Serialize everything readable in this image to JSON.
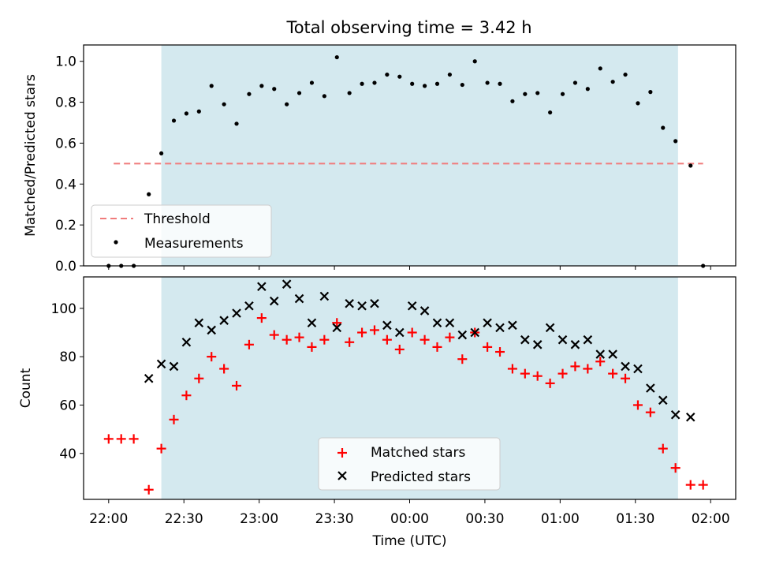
{
  "chart_data": {
    "type": "scatter",
    "title": "Total observing time = 3.42 h",
    "xlabel": "Time (UTC)",
    "x_unit": "minutes after 22:00 UTC",
    "xlim": [
      -10,
      250
    ],
    "x_ticks": [
      {
        "value": 0,
        "label": "22:00"
      },
      {
        "value": 30,
        "label": "22:30"
      },
      {
        "value": 60,
        "label": "23:00"
      },
      {
        "value": 90,
        "label": "23:30"
      },
      {
        "value": 120,
        "label": "00:00"
      },
      {
        "value": 150,
        "label": "00:30"
      },
      {
        "value": 180,
        "label": "01:00"
      },
      {
        "value": 210,
        "label": "01:30"
      },
      {
        "value": 240,
        "label": "02:00"
      }
    ],
    "shaded_region": {
      "x_start": 21,
      "x_end": 227,
      "color": "#d4e9ef"
    },
    "panels": [
      {
        "id": "top",
        "ylabel": "Matched/Predicted stars",
        "ylim": [
          0,
          1.08
        ],
        "y_ticks": [
          "0.0",
          "0.2",
          "0.4",
          "0.6",
          "0.8",
          "1.0"
        ],
        "y_tick_values": [
          0,
          0.2,
          0.4,
          0.6,
          0.8,
          1.0
        ],
        "threshold": {
          "name": "Threshold",
          "value": 0.5,
          "x_start": 2,
          "x_end": 237,
          "color": "#f07c7c"
        },
        "legend": {
          "position": "lower-left",
          "entries": [
            "Threshold",
            "Measurements"
          ]
        },
        "series": [
          {
            "name": "Measurements",
            "color": "#000000",
            "marker": "dot",
            "points": [
              [
                0,
                0.0
              ],
              [
                5,
                0.0
              ],
              [
                10,
                0.0
              ],
              [
                16,
                0.35
              ],
              [
                21,
                0.55
              ],
              [
                26,
                0.71
              ],
              [
                31,
                0.745
              ],
              [
                36,
                0.755
              ],
              [
                41,
                0.88
              ],
              [
                46,
                0.79
              ],
              [
                51,
                0.695
              ],
              [
                56,
                0.84
              ],
              [
                61,
                0.88
              ],
              [
                66,
                0.865
              ],
              [
                71,
                0.79
              ],
              [
                76,
                0.845
              ],
              [
                81,
                0.895
              ],
              [
                86,
                0.83
              ],
              [
                91,
                1.02
              ],
              [
                96,
                0.845
              ],
              [
                101,
                0.89
              ],
              [
                106,
                0.895
              ],
              [
                111,
                0.935
              ],
              [
                116,
                0.925
              ],
              [
                121,
                0.89
              ],
              [
                126,
                0.88
              ],
              [
                131,
                0.89
              ],
              [
                136,
                0.935
              ],
              [
                141,
                0.885
              ],
              [
                146,
                1.0
              ],
              [
                151,
                0.895
              ],
              [
                156,
                0.89
              ],
              [
                161,
                0.805
              ],
              [
                166,
                0.84
              ],
              [
                171,
                0.845
              ],
              [
                176,
                0.75
              ],
              [
                181,
                0.84
              ],
              [
                186,
                0.895
              ],
              [
                191,
                0.865
              ],
              [
                196,
                0.965
              ],
              [
                201,
                0.9
              ],
              [
                206,
                0.935
              ],
              [
                211,
                0.795
              ],
              [
                216,
                0.85
              ],
              [
                221,
                0.675
              ],
              [
                226,
                0.61
              ],
              [
                232,
                0.49
              ],
              [
                237,
                0.0
              ]
            ]
          }
        ]
      },
      {
        "id": "bottom",
        "ylabel": "Count",
        "ylim": [
          21,
          113
        ],
        "y_ticks": [
          "40",
          "60",
          "80",
          "100"
        ],
        "y_tick_values": [
          40,
          60,
          80,
          100
        ],
        "legend": {
          "position": "lower-center",
          "entries": [
            "Matched stars",
            "Predicted stars"
          ]
        },
        "series": [
          {
            "name": "Matched stars",
            "color": "#ff0000",
            "marker": "plus",
            "points": [
              [
                0,
                46
              ],
              [
                5,
                46
              ],
              [
                10,
                46
              ],
              [
                16,
                25
              ],
              [
                21,
                42
              ],
              [
                26,
                54
              ],
              [
                31,
                64
              ],
              [
                36,
                71
              ],
              [
                41,
                80
              ],
              [
                46,
                75
              ],
              [
                51,
                68
              ],
              [
                56,
                85
              ],
              [
                61,
                96
              ],
              [
                66,
                89
              ],
              [
                71,
                87
              ],
              [
                76,
                88
              ],
              [
                81,
                84
              ],
              [
                86,
                87
              ],
              [
                91,
                94
              ],
              [
                96,
                86
              ],
              [
                101,
                90
              ],
              [
                106,
                91
              ],
              [
                111,
                87
              ],
              [
                116,
                83
              ],
              [
                121,
                90
              ],
              [
                126,
                87
              ],
              [
                131,
                84
              ],
              [
                136,
                88
              ],
              [
                141,
                79
              ],
              [
                146,
                90
              ],
              [
                151,
                84
              ],
              [
                156,
                82
              ],
              [
                161,
                75
              ],
              [
                166,
                73
              ],
              [
                171,
                72
              ],
              [
                176,
                69
              ],
              [
                181,
                73
              ],
              [
                186,
                76
              ],
              [
                191,
                75
              ],
              [
                196,
                78
              ],
              [
                201,
                73
              ],
              [
                206,
                71
              ],
              [
                211,
                60
              ],
              [
                216,
                57
              ],
              [
                221,
                42
              ],
              [
                226,
                34
              ],
              [
                232,
                27
              ],
              [
                237,
                27
              ]
            ]
          },
          {
            "name": "Predicted stars",
            "color": "#000000",
            "marker": "x",
            "points": [
              [
                16,
                71
              ],
              [
                21,
                77
              ],
              [
                26,
                76
              ],
              [
                31,
                86
              ],
              [
                36,
                94
              ],
              [
                41,
                91
              ],
              [
                46,
                95
              ],
              [
                51,
                98
              ],
              [
                56,
                101
              ],
              [
                61,
                109
              ],
              [
                66,
                103
              ],
              [
                71,
                110
              ],
              [
                76,
                104
              ],
              [
                81,
                94
              ],
              [
                86,
                105
              ],
              [
                91,
                92
              ],
              [
                96,
                102
              ],
              [
                101,
                101
              ],
              [
                106,
                102
              ],
              [
                111,
                93
              ],
              [
                116,
                90
              ],
              [
                121,
                101
              ],
              [
                126,
                99
              ],
              [
                131,
                94
              ],
              [
                136,
                94
              ],
              [
                141,
                89
              ],
              [
                146,
                90
              ],
              [
                151,
                94
              ],
              [
                156,
                92
              ],
              [
                161,
                93
              ],
              [
                166,
                87
              ],
              [
                171,
                85
              ],
              [
                176,
                92
              ],
              [
                181,
                87
              ],
              [
                186,
                85
              ],
              [
                191,
                87
              ],
              [
                196,
                81
              ],
              [
                201,
                81
              ],
              [
                206,
                76
              ],
              [
                211,
                75
              ],
              [
                216,
                67
              ],
              [
                221,
                62
              ],
              [
                226,
                56
              ],
              [
                232,
                55
              ]
            ]
          }
        ]
      }
    ]
  }
}
